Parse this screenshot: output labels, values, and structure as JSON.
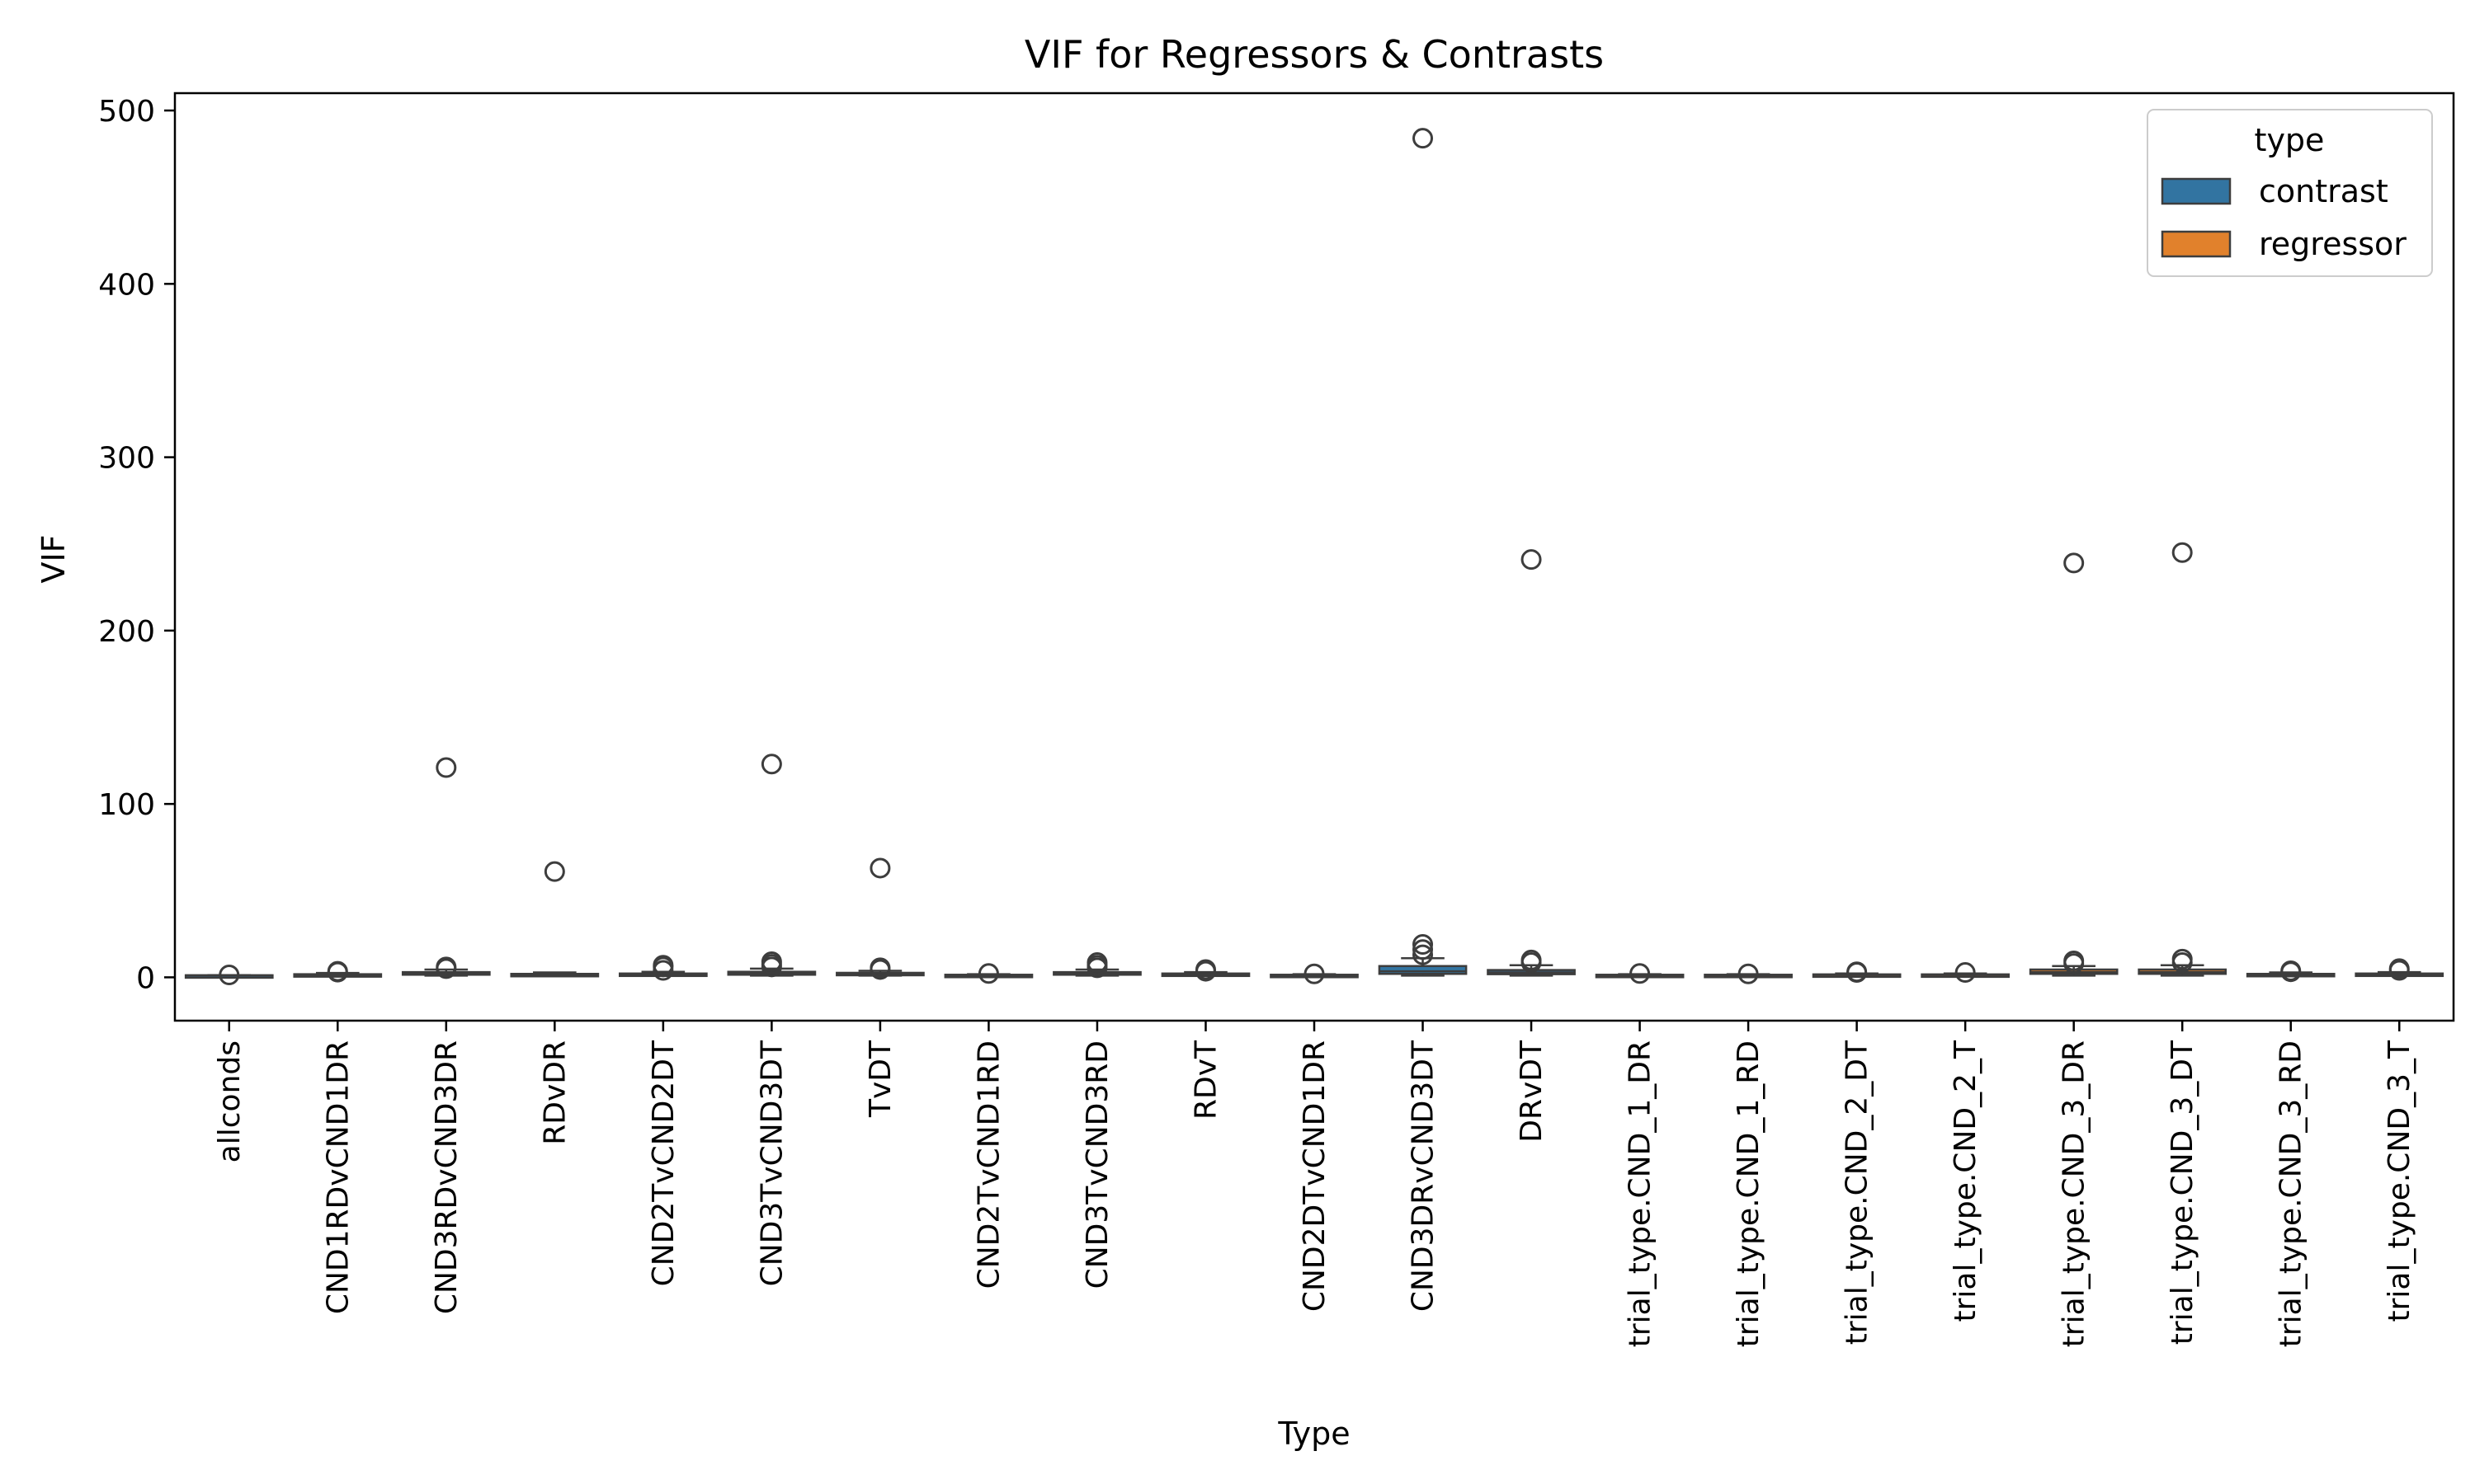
{
  "chart_data": {
    "type": "box",
    "title": "VIF for Regressors & Contrasts",
    "xlabel": "Type",
    "ylabel": "VIF",
    "ylim": [
      -25,
      510
    ],
    "yticks": [
      0,
      100,
      200,
      300,
      400,
      500
    ],
    "grid": false,
    "legend": {
      "title": "type",
      "placement": "top-right",
      "entries": [
        {
          "label": "contrast",
          "color": "#3274a1"
        },
        {
          "label": "regressor",
          "color": "#e1812c"
        }
      ]
    },
    "categories": [
      {
        "name": "allconds",
        "type": "contrast",
        "q1": 1.0,
        "median": 1.1,
        "q3": 1.2,
        "whisker_low": 1.0,
        "whisker_high": 1.3,
        "outliers": [
          1.4
        ]
      },
      {
        "name": "CND1RDvCND1DR",
        "type": "contrast",
        "q1": 1.2,
        "median": 1.5,
        "q3": 1.8,
        "whisker_low": 1.0,
        "whisker_high": 2.5,
        "outliers": [
          3.0,
          3.5
        ]
      },
      {
        "name": "CND3RDvCND3DR",
        "type": "contrast",
        "q1": 1.5,
        "median": 2.2,
        "q3": 3.0,
        "whisker_low": 1.0,
        "whisker_high": 4.5,
        "outliers": [
          5.0,
          6.0,
          121
        ]
      },
      {
        "name": "RDvDR",
        "type": "contrast",
        "q1": 1.3,
        "median": 1.6,
        "q3": 2.0,
        "whisker_low": 1.0,
        "whisker_high": 2.8,
        "outliers": [
          61
        ]
      },
      {
        "name": "CND2TvCND2DT",
        "type": "contrast",
        "q1": 1.2,
        "median": 1.6,
        "q3": 2.2,
        "whisker_low": 1.0,
        "whisker_high": 3.2,
        "outliers": [
          4.0,
          6.0,
          7.0
        ]
      },
      {
        "name": "CND3TvCND3DT",
        "type": "contrast",
        "q1": 1.5,
        "median": 2.2,
        "q3": 3.2,
        "whisker_low": 1.0,
        "whisker_high": 5.0,
        "outliers": [
          6.0,
          7.5,
          9.0,
          123
        ]
      },
      {
        "name": "TvDT",
        "type": "contrast",
        "q1": 1.4,
        "median": 1.9,
        "q3": 2.6,
        "whisker_low": 1.0,
        "whisker_high": 3.8,
        "outliers": [
          4.5,
          5.5,
          63
        ]
      },
      {
        "name": "CND2TvCND1RD",
        "type": "contrast",
        "q1": 1.1,
        "median": 1.3,
        "q3": 1.5,
        "whisker_low": 1.0,
        "whisker_high": 1.8,
        "outliers": [
          2.2
        ]
      },
      {
        "name": "CND3TvCND3RD",
        "type": "contrast",
        "q1": 1.5,
        "median": 2.2,
        "q3": 3.0,
        "whisker_low": 1.0,
        "whisker_high": 4.5,
        "outliers": [
          5.5,
          7.0,
          8.5
        ]
      },
      {
        "name": "RDvT",
        "type": "contrast",
        "q1": 1.3,
        "median": 1.7,
        "q3": 2.2,
        "whisker_low": 1.0,
        "whisker_high": 3.0,
        "outliers": [
          3.5,
          4.5
        ]
      },
      {
        "name": "CND2DTvCND1DR",
        "type": "contrast",
        "q1": 1.1,
        "median": 1.3,
        "q3": 1.5,
        "whisker_low": 1.0,
        "whisker_high": 1.8,
        "outliers": [
          2.0
        ]
      },
      {
        "name": "CND3DRvCND3DT",
        "type": "contrast",
        "q1": 2.0,
        "median": 3.5,
        "q3": 6.5,
        "whisker_low": 1.0,
        "whisker_high": 11.0,
        "outliers": [
          13,
          16,
          19,
          484
        ]
      },
      {
        "name": "DRvDT",
        "type": "contrast",
        "q1": 1.8,
        "median": 2.8,
        "q3": 4.2,
        "whisker_low": 1.0,
        "whisker_high": 7.0,
        "outliers": [
          8.5,
          10.0,
          241
        ]
      },
      {
        "name": "trial_type.CND_1_DR",
        "type": "regressor",
        "q1": 1.1,
        "median": 1.3,
        "q3": 1.5,
        "whisker_low": 1.0,
        "whisker_high": 1.8,
        "outliers": [
          2.2
        ]
      },
      {
        "name": "trial_type.CND_1_RD",
        "type": "regressor",
        "q1": 1.1,
        "median": 1.3,
        "q3": 1.5,
        "whisker_low": 1.0,
        "whisker_high": 1.8,
        "outliers": [
          2.0
        ]
      },
      {
        "name": "trial_type.CND_2_DT",
        "type": "regressor",
        "q1": 1.1,
        "median": 1.4,
        "q3": 1.7,
        "whisker_low": 1.0,
        "whisker_high": 2.2,
        "outliers": [
          2.8,
          3.2
        ]
      },
      {
        "name": "trial_type.CND_2_T",
        "type": "regressor",
        "q1": 1.1,
        "median": 1.4,
        "q3": 1.7,
        "whisker_low": 1.0,
        "whisker_high": 2.2,
        "outliers": [
          2.8
        ]
      },
      {
        "name": "trial_type.CND_3_DR",
        "type": "regressor",
        "q1": 2.0,
        "median": 3.0,
        "q3": 4.5,
        "whisker_low": 1.0,
        "whisker_high": 6.5,
        "outliers": [
          8.0,
          9.5,
          239
        ]
      },
      {
        "name": "trial_type.CND_3_DT",
        "type": "regressor",
        "q1": 2.0,
        "median": 3.0,
        "q3": 4.5,
        "whisker_low": 1.0,
        "whisker_high": 7.0,
        "outliers": [
          8.5,
          10.5,
          245
        ]
      },
      {
        "name": "trial_type.CND_3_RD",
        "type": "regressor",
        "q1": 1.2,
        "median": 1.6,
        "q3": 2.0,
        "whisker_low": 1.0,
        "whisker_high": 2.8,
        "outliers": [
          3.2,
          3.8
        ]
      },
      {
        "name": "trial_type.CND_3_T",
        "type": "regressor",
        "q1": 1.2,
        "median": 1.7,
        "q3": 2.2,
        "whisker_low": 1.0,
        "whisker_high": 3.0,
        "outliers": [
          4.0,
          5.0
        ]
      }
    ]
  }
}
